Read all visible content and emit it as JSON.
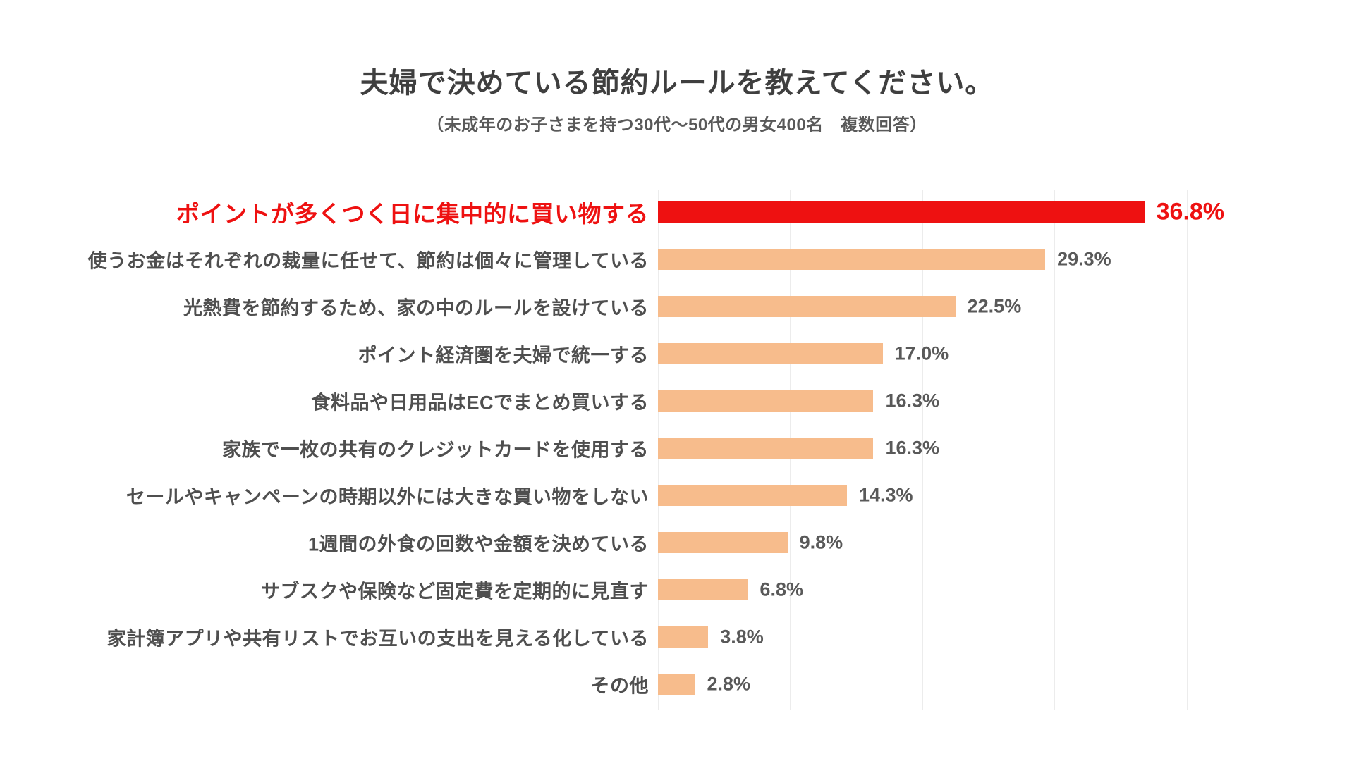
{
  "header": {
    "title": "夫婦で決めている節約ルールを教えてください。",
    "subtitle": "（未成年のお子さまを持つ30代～50代の男女400名　複数回答）"
  },
  "colors": {
    "background": "#ffffff",
    "accent_red": "#ee1111",
    "bar_orange": "#f7bc8c",
    "label_gray": "#4f4f4f",
    "value_gray": "#595959",
    "title_gray": "#3f3f3f",
    "gridline_gray": "#ececec"
  },
  "chart_data": {
    "type": "bar",
    "orientation": "horizontal",
    "title": "夫婦で決めている節約ルールを教えてください。",
    "subtitle": "（未成年のお子さまを持つ30代～50代の男女400名　複数回答）",
    "unit": "%",
    "xlim": [
      0,
      50
    ],
    "gridline_interval": 10,
    "grid": true,
    "legend": false,
    "highlighted_index": 0,
    "categories": [
      "ポイントが多くつく日に集中的に買い物する",
      "使うお金はそれぞれの裁量に任せて、節約は個々に管理している",
      "光熱費を節約するため、家の中のルールを設けている",
      "ポイント経済圏を夫婦で統一する",
      "食料品や日用品はECでまとめ買いする",
      "家族で一枚の共有のクレジットカードを使用する",
      "セールやキャンペーンの時期以外には大きな買い物をしない",
      "1週間の外食の回数や金額を決めている",
      "サブスクや保険など固定費を定期的に見直す",
      "家計簿アプリや共有リストでお互いの支出を見える化している",
      "その他"
    ],
    "values": [
      36.8,
      29.3,
      22.5,
      17.0,
      16.3,
      16.3,
      14.3,
      9.8,
      6.8,
      3.8,
      2.8
    ],
    "value_labels": [
      "36.8%",
      "29.3%",
      "22.5%",
      "17.0%",
      "16.3%",
      "16.3%",
      "14.3%",
      "9.8%",
      "6.8%",
      "3.8%",
      "2.8%"
    ]
  }
}
